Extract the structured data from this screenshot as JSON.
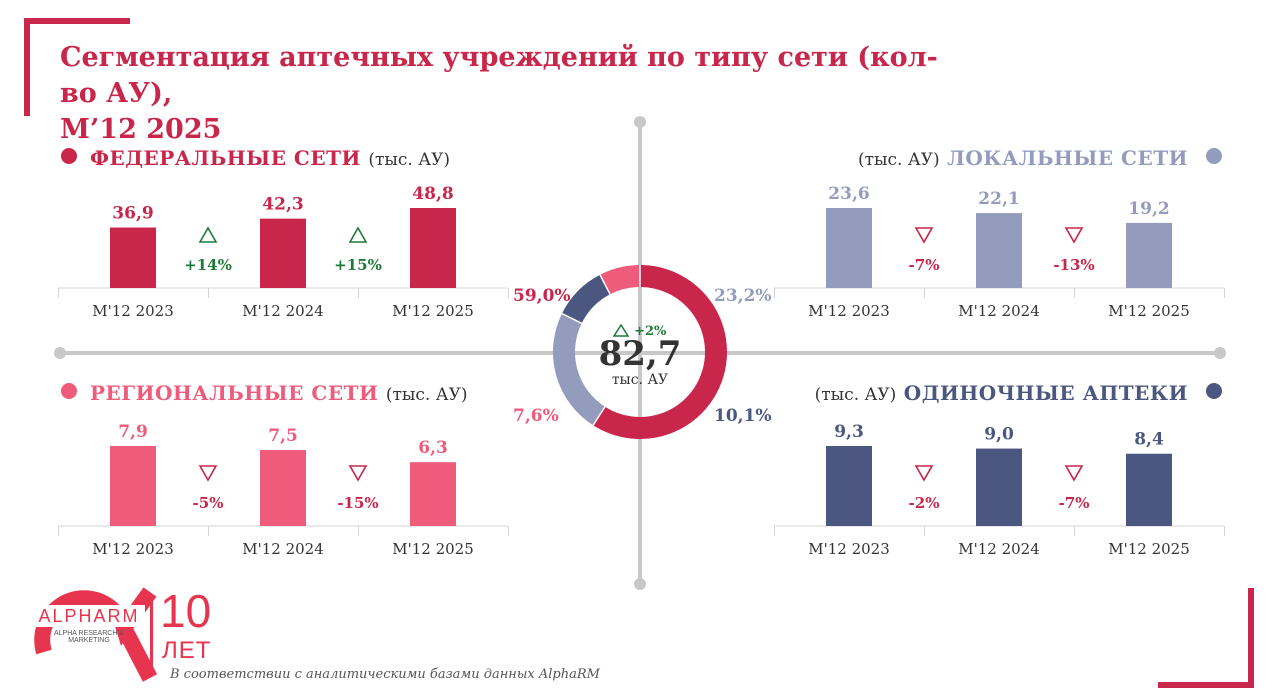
{
  "title_line1": "Сегментация аптечных учреждений по типу сети (кол-во АУ),",
  "title_line2": "М’12 2025",
  "colors": {
    "federal": "#c8264a",
    "local": "#949cbd",
    "regional": "#ee5b7b",
    "single": "#4b5780",
    "up": "#1e7a3a",
    "down": "#c8264a",
    "axis": "#c8c8c8",
    "bracket": "#c8264a"
  },
  "panels": {
    "federal": {
      "title": "ФЕДЕРАЛЬНЫЕ СЕТИ",
      "unit": "(тыс. АУ)"
    },
    "local": {
      "title": "ЛОКАЛЬНЫЕ СЕТИ",
      "unit": "(тыс. АУ)"
    },
    "regional": {
      "title": "РЕГИОНАЛЬНЫЕ СЕТИ",
      "unit": "(тыс. АУ)"
    },
    "single": {
      "title": "ОДИНОЧНЫЕ АПТЕКИ",
      "unit": "(тыс. АУ)"
    }
  },
  "center": {
    "total": "82,7",
    "unit": "тыс. АУ",
    "growth": "+2%"
  },
  "chart_data": [
    {
      "type": "bar",
      "title": "ФЕДЕРАЛЬНЫЕ СЕТИ",
      "categories": [
        "М'12 2023",
        "М'12 2024",
        "М'12 2025"
      ],
      "values": [
        36.9,
        42.3,
        48.8
      ],
      "value_labels": [
        "36,9",
        "42,3",
        "48,8"
      ],
      "changes": [
        {
          "label": "+14%",
          "direction": "up"
        },
        {
          "label": "+15%",
          "direction": "up"
        }
      ]
    },
    {
      "type": "bar",
      "title": "ЛОКАЛЬНЫЕ СЕТИ",
      "categories": [
        "М'12 2023",
        "М'12 2024",
        "М'12 2025"
      ],
      "values": [
        23.6,
        22.1,
        19.2
      ],
      "value_labels": [
        "23,6",
        "22,1",
        "19,2"
      ],
      "changes": [
        {
          "label": "-7%",
          "direction": "down"
        },
        {
          "label": "-13%",
          "direction": "down"
        }
      ]
    },
    {
      "type": "bar",
      "title": "РЕГИОНАЛЬНЫЕ СЕТИ",
      "categories": [
        "М'12 2023",
        "М'12 2024",
        "М'12 2025"
      ],
      "values": [
        7.9,
        7.5,
        6.3
      ],
      "value_labels": [
        "7,9",
        "7,5",
        "6,3"
      ],
      "changes": [
        {
          "label": "-5%",
          "direction": "down"
        },
        {
          "label": "-15%",
          "direction": "down"
        }
      ]
    },
    {
      "type": "bar",
      "title": "ОДИНОЧНЫЕ АПТЕКИ",
      "categories": [
        "М'12 2023",
        "М'12 2024",
        "М'12 2025"
      ],
      "values": [
        9.3,
        9.0,
        8.4
      ],
      "value_labels": [
        "9,3",
        "9,0",
        "8,4"
      ],
      "changes": [
        {
          "label": "-2%",
          "direction": "down"
        },
        {
          "label": "-7%",
          "direction": "down"
        }
      ]
    },
    {
      "type": "pie",
      "style": "donut",
      "slices": [
        {
          "name": "ФЕДЕРАЛЬНЫЕ СЕТИ",
          "value": 59.0,
          "label": "59,0%"
        },
        {
          "name": "ЛОКАЛЬНЫЕ СЕТИ",
          "value": 23.2,
          "label": "23,2%"
        },
        {
          "name": "ОДИНОЧНЫЕ АПТЕКИ",
          "value": 10.1,
          "label": "10,1%"
        },
        {
          "name": "РЕГИОНАЛЬНЫЕ СЕТИ",
          "value": 7.6,
          "label": "7,6%"
        }
      ]
    }
  ],
  "logo": {
    "brand": "ALPHARM",
    "tagline": "ALPHA RESEARCH & MARKETING",
    "anniversary_number": "10",
    "anniversary_word": "ЛЕТ"
  },
  "footnote": "В соответствии с аналитическими базами данных AlphaRM"
}
